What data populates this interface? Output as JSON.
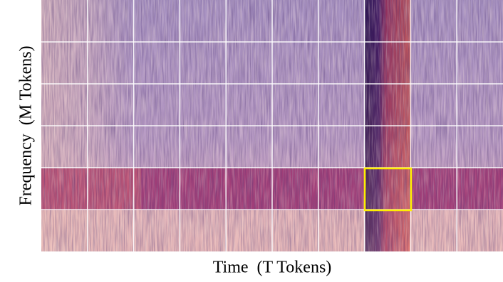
{
  "axes": {
    "y_label": "Frequency  (M Tokens)",
    "x_label": "Time  (T Tokens)"
  }
}
